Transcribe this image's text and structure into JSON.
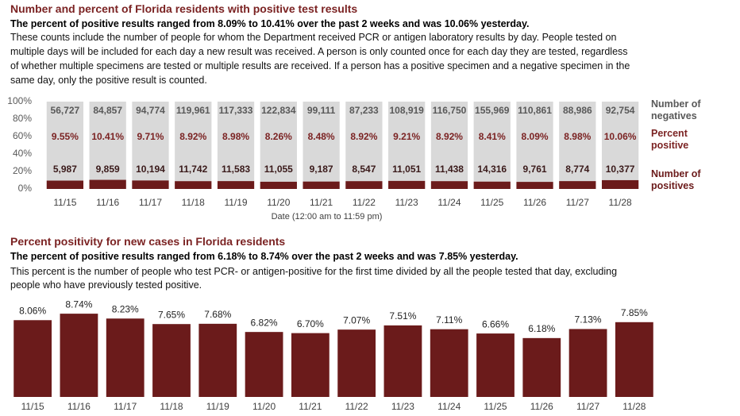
{
  "chart_data": [
    {
      "type": "bar",
      "title": "Number and percent of Florida residents with positive test results",
      "subtitle": "The percent of positive results ranged from 8.09% to 10.41% over the past 2 weeks and was 10.06% yesterday.",
      "note": "These counts include the number of people for whom the Department received PCR or antigen laboratory results by day. People tested on multiple days will be included for each day a new result was received. A person is only counted once for each day they are tested, regardless of whether multiple specimens are tested or multiple results are received. If a person has a positive specimen and a negative specimen in the same day, only the positive result is counted.",
      "xlabel": "Date (12:00 am to 11:59 pm)",
      "categories": [
        "11/15",
        "11/16",
        "11/17",
        "11/18",
        "11/19",
        "11/20",
        "11/21",
        "11/22",
        "11/23",
        "11/24",
        "11/25",
        "11/26",
        "11/27",
        "11/28"
      ],
      "series": [
        {
          "name": "Number of positives",
          "color": "#6b1b1b",
          "values": [
            5987,
            9859,
            10194,
            11742,
            11583,
            11055,
            9187,
            8547,
            11051,
            11438,
            14316,
            9761,
            8774,
            10377
          ],
          "value_labels": [
            "5,987",
            "9,859",
            "10,194",
            "11,742",
            "11,583",
            "11,055",
            "9,187",
            "8,547",
            "11,051",
            "11,438",
            "14,316",
            "9,761",
            "8,774",
            "10,377"
          ]
        },
        {
          "name": "Number of negatives",
          "color": "#d9d9d9",
          "values": [
            56727,
            84857,
            94774,
            119961,
            117333,
            122834,
            99111,
            87233,
            108919,
            116750,
            155969,
            110861,
            88986,
            92754
          ],
          "value_labels": [
            "56,727",
            "84,857",
            "94,774",
            "119,961",
            "117,333",
            "122,834",
            "99,111",
            "87,233",
            "108,919",
            "116,750",
            "155,969",
            "110,861",
            "88,986",
            "92,754"
          ]
        }
      ],
      "percent_positive": {
        "name": "Percent positive",
        "color": "#7b2323",
        "values": [
          9.55,
          10.41,
          9.71,
          8.92,
          8.98,
          8.26,
          8.48,
          8.92,
          9.21,
          8.92,
          8.41,
          8.09,
          8.98,
          10.06
        ],
        "value_labels": [
          "9.55%",
          "10.41%",
          "9.71%",
          "8.92%",
          "8.98%",
          "8.26%",
          "8.48%",
          "8.92%",
          "9.21%",
          "8.92%",
          "8.41%",
          "8.09%",
          "8.98%",
          "10.06%"
        ]
      },
      "ylim": [
        0,
        100
      ],
      "yticks": [
        {
          "value": 0,
          "label": "0%"
        },
        {
          "value": 20,
          "label": "20%"
        },
        {
          "value": 40,
          "label": "40%"
        },
        {
          "value": 60,
          "label": "60%"
        },
        {
          "value": 80,
          "label": "80%"
        },
        {
          "value": 100,
          "label": "100%"
        }
      ]
    },
    {
      "type": "bar",
      "title": "Percent positivity for new cases in Florida residents",
      "subtitle": "The percent of positive results ranged from 6.18% to 8.74% over the past 2 weeks and was 7.85% yesterday.",
      "note": "This percent is the number of people who test PCR- or antigen-positive for the first time divided by all the people tested that day, excluding people who have previously tested positive.",
      "categories": [
        "11/15",
        "11/16",
        "11/17",
        "11/18",
        "11/19",
        "11/20",
        "11/21",
        "11/22",
        "11/23",
        "11/24",
        "11/25",
        "11/26",
        "11/27",
        "11/28"
      ],
      "values": [
        8.06,
        8.74,
        8.23,
        7.65,
        7.68,
        6.82,
        6.7,
        7.07,
        7.51,
        7.11,
        6.66,
        6.18,
        7.13,
        7.85
      ],
      "value_labels": [
        "8.06%",
        "8.74%",
        "8.23%",
        "7.65%",
        "7.68%",
        "6.82%",
        "6.70%",
        "7.07%",
        "7.51%",
        "7.11%",
        "6.66%",
        "6.18%",
        "7.13%",
        "7.85%"
      ],
      "color": "#6b1b1b",
      "ylim": [
        0,
        10
      ]
    }
  ]
}
